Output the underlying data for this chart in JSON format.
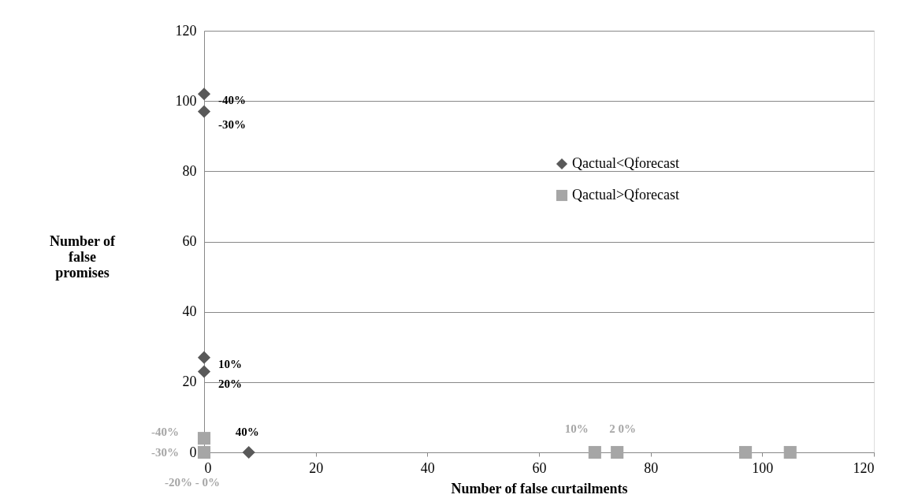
{
  "chart_data": {
    "type": "scatter",
    "xlabel": "Number of false curtailments",
    "ylabel": "Number of false promises",
    "xlim": [
      0,
      120
    ],
    "ylim": [
      0,
      120
    ],
    "xticks": [
      0,
      20,
      40,
      60,
      80,
      100,
      120
    ],
    "yticks": [
      0,
      20,
      40,
      60,
      80,
      100,
      120
    ],
    "grid": "y",
    "legend": "right",
    "series": [
      {
        "name": "Qactual<Qforecast",
        "color": "#595959",
        "marker": "diamond",
        "x": [
          0,
          0,
          0,
          0,
          8
        ],
        "values": [
          102,
          97,
          27,
          23,
          0
        ]
      },
      {
        "name": "Qactual>Qforecast",
        "color": "#a6a6a6",
        "marker": "square",
        "x": [
          0,
          0,
          70,
          74,
          97,
          105
        ],
        "values": [
          4,
          0,
          0,
          0,
          0,
          0
        ]
      }
    ],
    "annotations": [
      {
        "text": "-40%",
        "x": 0,
        "y": 102
      },
      {
        "text": "-30%",
        "x": 0,
        "y": 97
      },
      {
        "text": "10%",
        "x": 0,
        "y": 27
      },
      {
        "text": "20%",
        "x": 0,
        "y": 23
      },
      {
        "text": "40%",
        "x": 8,
        "y": 0
      },
      {
        "text": "-40%",
        "x": 0,
        "y": 4
      },
      "-30%",
      {
        "text": "-20% - 0%",
        "x": 0,
        "y": 0
      },
      {
        "text": "10%",
        "x": 70,
        "y": 0
      },
      {
        "text": "2 0%",
        "x": 74,
        "y": 0
      }
    ]
  }
}
